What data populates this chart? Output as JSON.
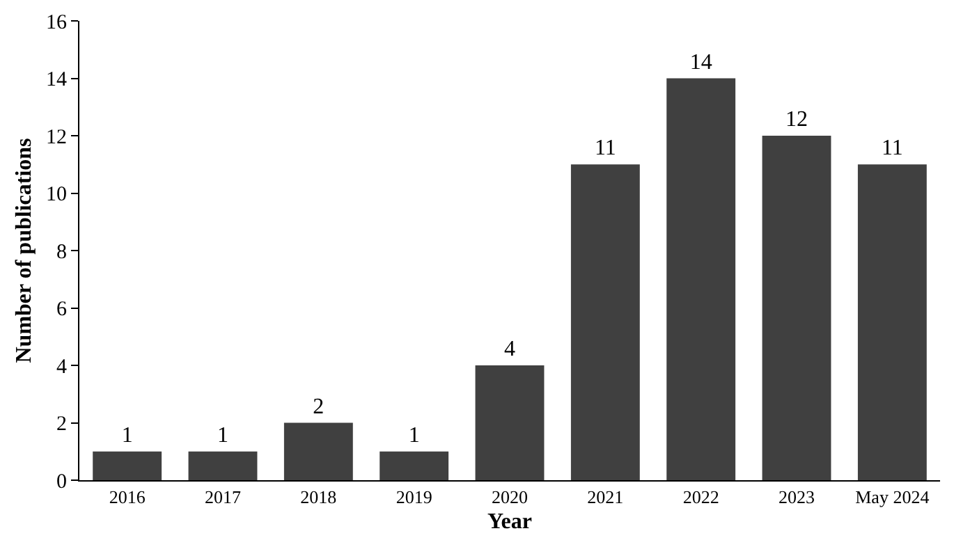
{
  "chart_data": {
    "type": "bar",
    "xlabel": "Year",
    "ylabel": "Number of publications",
    "categories": [
      "2016",
      "2017",
      "2018",
      "2019",
      "2020",
      "2021",
      "2022",
      "2023",
      "May 2024"
    ],
    "values": [
      1,
      1,
      2,
      1,
      4,
      11,
      14,
      12,
      11
    ],
    "color": "#404040",
    "ylim": [
      0,
      16
    ],
    "yticks": [
      0,
      2,
      4,
      6,
      8,
      10,
      12,
      14,
      16
    ],
    "data_labels": true,
    "legend": false
  }
}
